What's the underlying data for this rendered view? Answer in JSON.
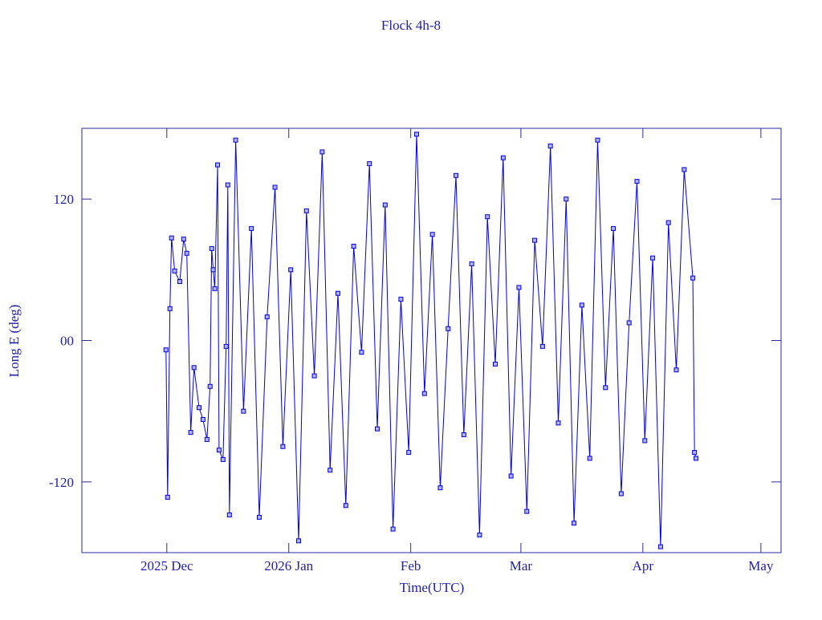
{
  "chart_data": {
    "type": "line",
    "title": "Flock 4h-8",
    "x_label": "Time(UTC)",
    "y_label": "Long E (deg)",
    "xlim": [
      "2025-11-09T10:00",
      "2026-05-06T03:00"
    ],
    "xticks": [
      {
        "value": "2025-12-01T00:00",
        "label": "2025 Dec"
      },
      {
        "value": "2026-01-01T00:00",
        "label": "2026 Jan"
      },
      {
        "value": "2026-02-01T00:00",
        "label": "Feb"
      },
      {
        "value": "2026-03-01T00:00",
        "label": "Mar"
      },
      {
        "value": "2026-04-01T00:00",
        "label": "Apr"
      },
      {
        "value": "2026-05-01T00:00",
        "label": "May"
      }
    ],
    "ylim": [
      -180,
      180
    ],
    "yticks": [
      {
        "value": -120,
        "label": "-120"
      },
      {
        "value": 0,
        "label": "00"
      },
      {
        "value": 120,
        "label": "120"
      }
    ],
    "series": [
      {
        "name": "Flock 4h-8",
        "color": "#0000e0",
        "x": [
          "2025-11-30T19:00",
          "2025-12-01T05:00",
          "2025-12-01T19:00",
          "2025-12-02T05:00",
          "2025-12-03T00:00",
          "2025-12-04T07:00",
          "2025-12-05T07:00",
          "2025-12-06T02:00",
          "2025-12-07T02:00",
          "2025-12-07T22:00",
          "2025-12-09T05:00",
          "2025-12-10T05:00",
          "2025-12-11T05:00",
          "2025-12-12T00:00",
          "2025-12-12T10:00",
          "2025-12-12T19:00",
          "2025-12-13T05:00",
          "2025-12-13T22:00",
          "2025-12-14T07:00",
          "2025-12-15T07:00",
          "2025-12-16T02:00",
          "2025-12-16T12:00",
          "2025-12-16T22:00",
          "2025-12-18T12:00",
          "2025-12-20T12:00",
          "2025-12-22T12:00",
          "2025-12-24T12:00",
          "2025-12-26T12:00",
          "2025-12-28T12:00",
          "2025-12-30T12:00",
          "2026-01-01T12:00",
          "2026-01-03T12:00",
          "2026-01-05T12:00",
          "2026-01-07T12:00",
          "2026-01-09T12:00",
          "2026-01-11T12:00",
          "2026-01-13T12:00",
          "2026-01-15T12:00",
          "2026-01-17T12:00",
          "2026-01-19T12:00",
          "2026-01-21T12:00",
          "2026-01-23T12:00",
          "2026-01-25T12:00",
          "2026-01-27T12:00",
          "2026-01-29T12:00",
          "2026-01-31T12:00",
          "2026-02-02T12:00",
          "2026-02-04T12:00",
          "2026-02-06T12:00",
          "2026-02-08T12:00",
          "2026-02-10T12:00",
          "2026-02-12T12:00",
          "2026-02-14T12:00",
          "2026-02-16T12:00",
          "2026-02-18T12:00",
          "2026-02-20T12:00",
          "2026-02-22T12:00",
          "2026-02-24T12:00",
          "2026-02-26T12:00",
          "2026-02-28T12:00",
          "2026-03-02T12:00",
          "2026-03-04T12:00",
          "2026-03-06T12:00",
          "2026-03-08T12:00",
          "2026-03-10T12:00",
          "2026-03-12T12:00",
          "2026-03-14T12:00",
          "2026-03-16T12:00",
          "2026-03-18T12:00",
          "2026-03-20T12:00",
          "2026-03-22T12:00",
          "2026-03-24T12:00",
          "2026-03-26T12:00",
          "2026-03-28T12:00",
          "2026-03-30T12:00",
          "2026-04-01T12:00",
          "2026-04-03T12:00",
          "2026-04-05T12:00",
          "2026-04-07T12:00",
          "2026-04-09T12:00",
          "2026-04-11T12:00",
          "2026-04-13T17:00",
          "2026-04-14T03:00",
          "2026-04-14T12:00"
        ],
        "values": [
          -8,
          -133,
          27,
          87,
          59,
          50,
          86,
          74,
          -78,
          -23,
          -57,
          -67,
          -84,
          -39,
          78,
          60,
          44,
          149,
          -93,
          -101,
          -5,
          132,
          -148,
          170,
          -60,
          95,
          -150,
          20,
          130,
          -90,
          60,
          -170,
          110,
          -30,
          160,
          -110,
          40,
          -140,
          80,
          -10,
          150,
          -75,
          115,
          -160,
          35,
          -95,
          175,
          -45,
          90,
          -125,
          10,
          140,
          -80,
          65,
          -165,
          105,
          -20,
          155,
          -115,
          45,
          -145,
          85,
          -5,
          165,
          -70,
          120,
          -155,
          30,
          -100,
          170,
          -40,
          95,
          -130,
          15,
          135,
          -85,
          70,
          -175,
          100,
          -25,
          145,
          53,
          -95,
          -100
        ]
      }
    ]
  }
}
